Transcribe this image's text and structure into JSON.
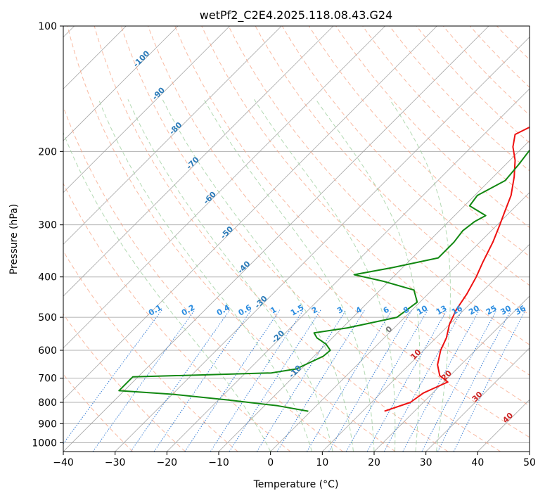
{
  "chart_data": {
    "type": "skew-t",
    "title": "wetPf2_C2E4.2025.118.08.43.G24",
    "xlabel": "Temperature (°C)",
    "ylabel": "Pressure (hPa)",
    "xlim": [
      -40,
      50
    ],
    "ylim_hpa": [
      1050,
      100
    ],
    "y_scale": "log",
    "x_ticks": [
      "−40",
      "−30",
      "−20",
      "−10",
      "0",
      "10",
      "20",
      "30",
      "40",
      "50"
    ],
    "x_tick_values": [
      -40,
      -30,
      -20,
      -10,
      0,
      10,
      20,
      30,
      40,
      50
    ],
    "y_ticks": [
      "100",
      "200",
      "300",
      "400",
      "500",
      "600",
      "700",
      "800",
      "900",
      "1000"
    ],
    "y_tick_values": [
      100,
      200,
      300,
      400,
      500,
      600,
      700,
      800,
      900,
      1000
    ],
    "grid": true,
    "colors": {
      "temperature": "#ee1111",
      "dewpoint": "#118811",
      "dry_adiabat": "#f7a383",
      "moist_adiabat": "#9fcf9f",
      "mixing_ratio": "#3a7fd5",
      "isotherm": "#999999",
      "axis": "#000000"
    },
    "series": [
      {
        "points": [
          [
            840,
            14.2
          ],
          [
            800,
            17.5
          ],
          [
            760,
            18.2
          ],
          [
            740,
            19.3
          ],
          [
            715,
            20.8
          ],
          [
            690,
            18.0
          ],
          [
            650,
            15.5
          ],
          [
            600,
            13.3
          ],
          [
            560,
            12.0
          ],
          [
            520,
            10.0
          ],
          [
            480,
            8.5
          ],
          [
            440,
            7.5
          ],
          [
            400,
            6.0
          ],
          [
            370,
            4.5
          ],
          [
            330,
            2.5
          ],
          [
            300,
            0.5
          ],
          [
            280,
            -1.0
          ],
          [
            255,
            -3.0
          ],
          [
            230,
            -6.0
          ],
          [
            210,
            -9.0
          ],
          [
            195,
            -12.0
          ],
          [
            182,
            -14.0
          ],
          [
            172,
            -12.0
          ],
          [
            165,
            -7.0
          ],
          [
            158,
            -3.5
          ],
          [
            150,
            -4.0
          ],
          [
            140,
            -6.5
          ],
          [
            125,
            -9.5
          ],
          [
            110,
            -13.0
          ],
          [
            100,
            -17.0
          ]
        ]
      },
      {
        "points": [
          [
            840,
            -0.5
          ],
          [
            815,
            -7.5
          ],
          [
            790,
            -18.0
          ],
          [
            765,
            -30.0
          ],
          [
            750,
            -41.0
          ],
          [
            695,
            -41.0
          ],
          [
            680,
            -15.0
          ],
          [
            665,
            -11.0
          ],
          [
            620,
            -8.2
          ],
          [
            600,
            -8.0
          ],
          [
            580,
            -10.0
          ],
          [
            560,
            -13.0
          ],
          [
            545,
            -14.5
          ],
          [
            530,
            -9.0
          ],
          [
            500,
            -1.5
          ],
          [
            460,
            -0.5
          ],
          [
            430,
            -3.5
          ],
          [
            410,
            -11.0
          ],
          [
            395,
            -18.0
          ],
          [
            380,
            -12.0
          ],
          [
            360,
            -5.0
          ],
          [
            330,
            -5.0
          ],
          [
            310,
            -5.5
          ],
          [
            295,
            -5.0
          ],
          [
            285,
            -4.0
          ],
          [
            270,
            -9.0
          ],
          [
            255,
            -9.5
          ],
          [
            235,
            -7.0
          ],
          [
            215,
            -7.5
          ],
          [
            190,
            -8.5
          ],
          [
            175,
            -10.0
          ],
          [
            160,
            -13.0
          ],
          [
            148,
            -13.0
          ],
          [
            135,
            -11.0
          ],
          [
            118,
            -8.5
          ],
          [
            100,
            -4.5
          ]
        ]
      }
    ],
    "dry_adiabats_c": [
      -30,
      -20,
      -10,
      0,
      10,
      20,
      30,
      40,
      50,
      60,
      70,
      80,
      90,
      100,
      110,
      120,
      130,
      140,
      150,
      160,
      170,
      180
    ],
    "moist_adiabats_c": [
      0,
      8,
      12,
      16,
      20,
      24,
      28,
      32
    ],
    "mixing_ratio_labels": [
      "0.1",
      "0.2",
      "0.4",
      "0.6",
      "1",
      "1.5",
      "2",
      "3",
      "4",
      "6",
      "8",
      "10",
      "13",
      "16",
      "20",
      "25",
      "30",
      "36"
    ],
    "mixing_ratio_values": [
      0.1,
      0.2,
      0.4,
      0.6,
      1,
      1.5,
      2,
      3,
      4,
      6,
      8,
      10,
      13,
      16,
      20,
      25,
      30,
      36
    ],
    "isotherm_labels_neg": [
      "-100",
      "-90",
      "-80",
      "-70",
      "-60",
      "-50",
      "-40",
      "-30",
      "-20",
      "-10"
    ],
    "isotherm_labels_neg_values": [
      -100,
      -90,
      -80,
      -70,
      -60,
      -50,
      -40,
      -30,
      -20,
      -10
    ],
    "isotherm_label_zero": "0",
    "isotherm_labels_pos": [
      "10",
      "20",
      "30",
      "40"
    ],
    "isotherm_labels_pos_values": [
      10,
      20,
      30,
      40
    ]
  }
}
